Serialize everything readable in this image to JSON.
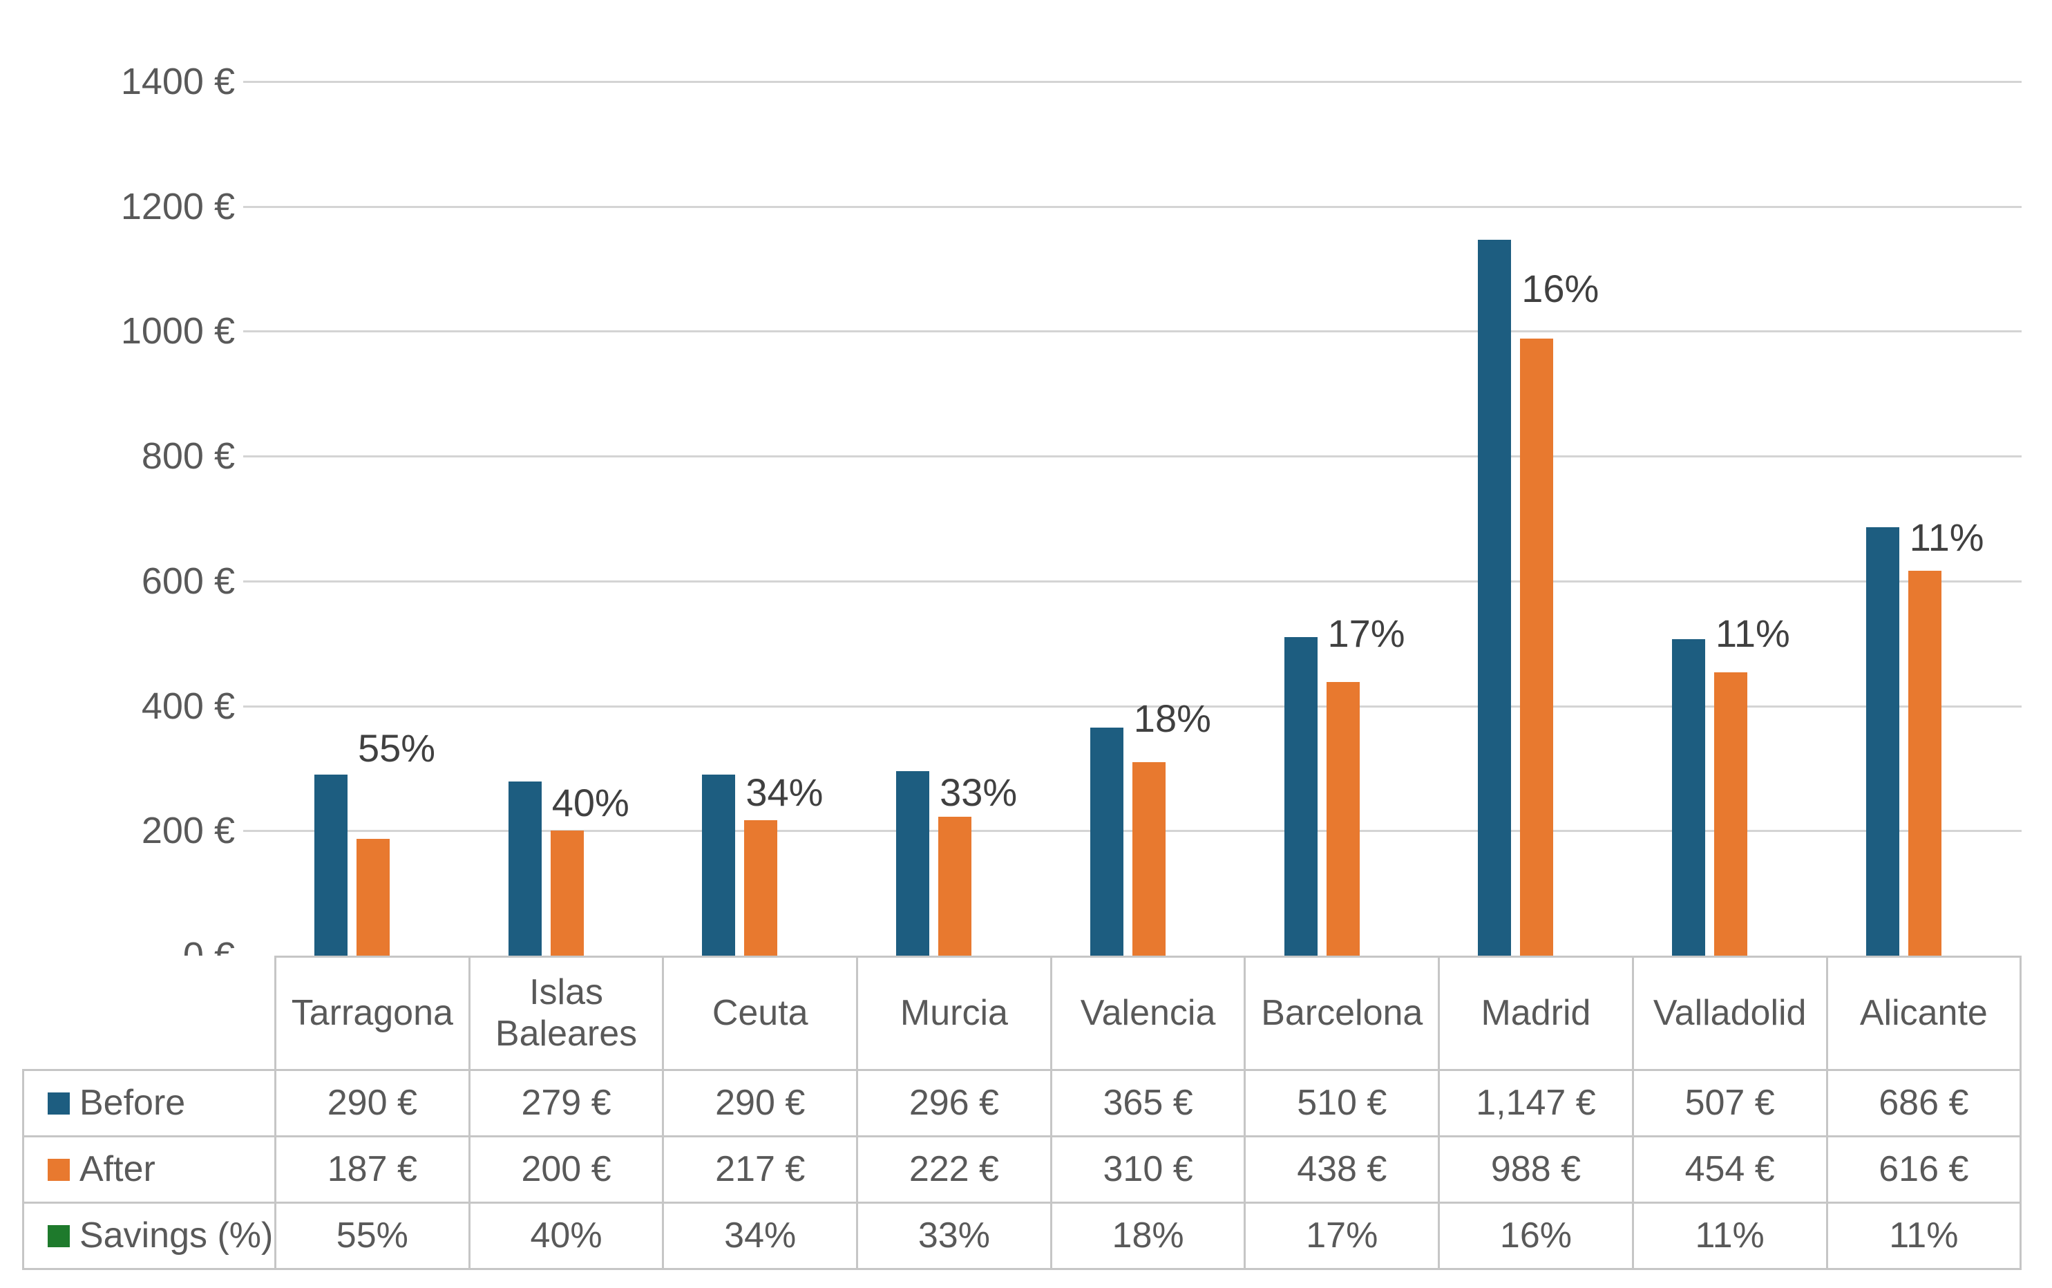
{
  "chart_data": {
    "type": "bar",
    "title": "",
    "categories": [
      "Tarragona",
      "Islas Baleares",
      "Ceuta",
      "Murcia",
      "Valencia",
      "Barcelona",
      "Madrid",
      "Valladolid",
      "Alicante"
    ],
    "series": [
      {
        "name": "Before",
        "color": "#1d5d80",
        "values": [
          290,
          279,
          290,
          296,
          365,
          510,
          1147,
          507,
          686
        ],
        "display": [
          "290 €",
          "279 €",
          "290 €",
          "296 €",
          "365 €",
          "510 €",
          "1,147 €",
          "507 €",
          "686 €"
        ]
      },
      {
        "name": "After",
        "color": "#e8792f",
        "values": [
          187,
          200,
          217,
          222,
          310,
          438,
          988,
          454,
          616
        ],
        "display": [
          "187 €",
          "200 €",
          "217 €",
          "222 €",
          "310 €",
          "438 €",
          "988 €",
          "454 €",
          "616 €"
        ]
      },
      {
        "name": "Savings (%)",
        "color": "#1e7a2c",
        "values": [
          55,
          40,
          34,
          33,
          18,
          17,
          16,
          11,
          11
        ],
        "display": [
          "55%",
          "40%",
          "34%",
          "33%",
          "18%",
          "17%",
          "16%",
          "11%",
          "11%"
        ]
      }
    ],
    "percent_labels": [
      "55%",
      "40%",
      "34%",
      "33%",
      "18%",
      "17%",
      "16%",
      "11%",
      "11%"
    ],
    "y_axis": {
      "min": 0,
      "max": 1400,
      "step": 200,
      "ticks": [
        "0 €",
        "200 €",
        "400 €",
        "600 €",
        "800 €",
        "1000 €",
        "1200 €",
        "1400 €"
      ]
    },
    "grid": true,
    "legend_position": "table-left-keys",
    "colors": {
      "before": "#1d5d80",
      "after": "#e8792f",
      "savings": "#1e7a2c",
      "gridline": "#d4d4d4",
      "table_border": "#c6c6c6",
      "text": "#595959"
    }
  },
  "table": {
    "columns": [
      "Tarragona",
      "Islas Baleares",
      "Ceuta",
      "Murcia",
      "Valencia",
      "Barcelona",
      "Madrid",
      "Valladolid",
      "Alicante"
    ],
    "rows": [
      {
        "label": "Before",
        "swatch": "#1d5d80",
        "values": [
          "290 €",
          "279 €",
          "290 €",
          "296 €",
          "365 €",
          "510 €",
          "1,147 €",
          "507 €",
          "686 €"
        ]
      },
      {
        "label": "After",
        "swatch": "#e8792f",
        "values": [
          "187 €",
          "200 €",
          "217 €",
          "222 €",
          "310 €",
          "438 €",
          "988 €",
          "454 €",
          "616 €"
        ]
      },
      {
        "label": "Savings (%)",
        "swatch": "#1e7a2c",
        "values": [
          "55%",
          "40%",
          "34%",
          "33%",
          "18%",
          "17%",
          "16%",
          "11%",
          "11%"
        ]
      }
    ]
  }
}
